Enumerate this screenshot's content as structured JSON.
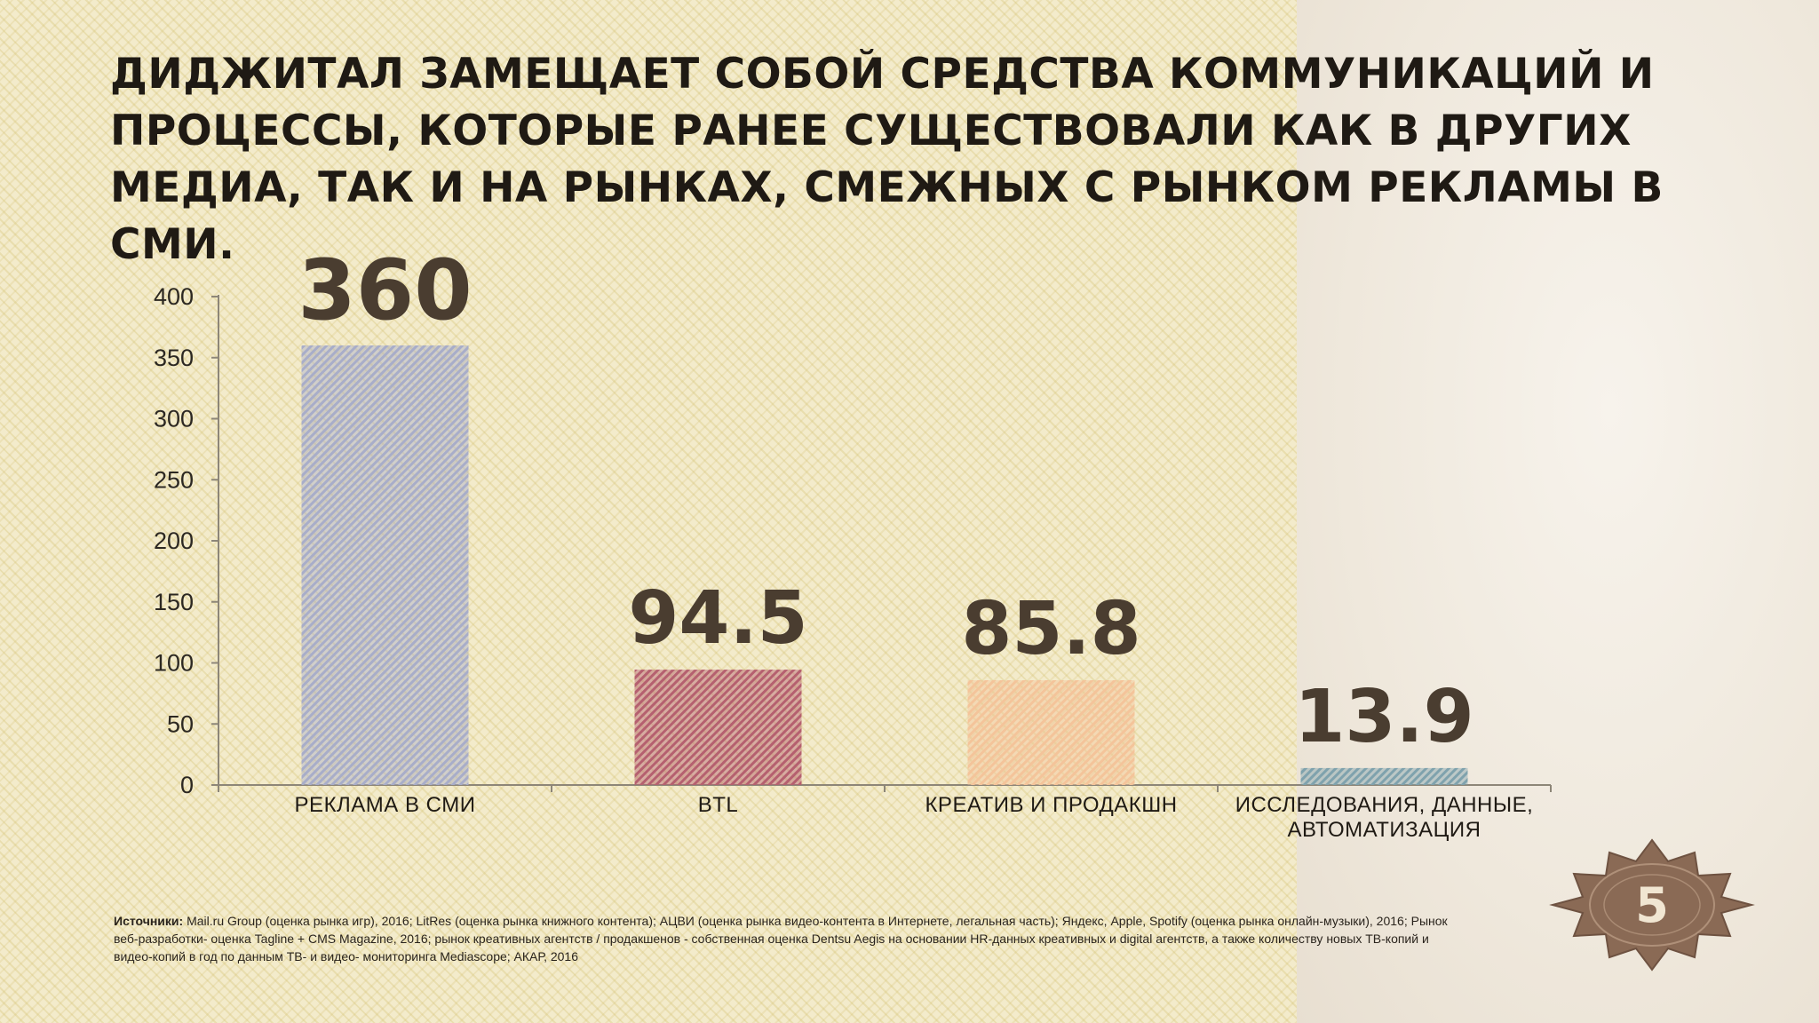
{
  "slide": {
    "title": "ДИДЖИТАЛ ЗАМЕЩАЕТ СОБОЙ СРЕДСТВА КОММУНИКАЦИЙ И ПРОЦЕССЫ, КОТОРЫЕ РАНЕЕ СУЩЕСТВОВАЛИ КАК В ДРУГИХ МЕДИА, ТАК И НА РЫНКАХ, СМЕЖНЫХ С РЫНКОМ РЕКЛАМЫ В СМИ.",
    "sources_label": "Источники:",
    "sources_text": " Mail.ru Group (оценка рынка игр), 2016; LitRes (оценка рынка книжного контента); АЦВИ (оценка рынка видео-контента в Интернете, легальная часть); Яндекс, Apple, Spotify (оценка рынка онлайн-музыки), 2016; Рынок веб-разработки- оценка Tagline + CMS Magazine, 2016; рынок креативных агентств / продакшенов - собственная оценка Dentsu Aegis на основании HR-данных креативных и digital агентств, а также количеству новых ТВ-копий и видео-копий в год по данным ТВ- и видео- мониторинга Mediascope; АКАР, 2016",
    "page_number": "5"
  },
  "chart_data": {
    "type": "bar",
    "categories": [
      [
        "РЕКЛАМА В СМИ"
      ],
      [
        "BTL"
      ],
      [
        "КРЕАТИВ И ПРОДАКШН"
      ],
      [
        "ИССЛЕДОВАНИЯ, ДАННЫЕ,",
        "АВТОМАТИЗАЦИЯ"
      ]
    ],
    "values": [
      360,
      94.5,
      85.8,
      13.9
    ],
    "value_labels": [
      "360",
      "94.5",
      "85.8",
      "13.9"
    ],
    "colors": [
      "#a8adc9",
      "#b5606f",
      "#f4c49a",
      "#7fa2ad"
    ],
    "yticks": [
      "0",
      "50",
      "100",
      "150",
      "200",
      "250",
      "300",
      "350",
      "400"
    ],
    "ylim": [
      0,
      400
    ],
    "grid": false,
    "legend": "none"
  }
}
